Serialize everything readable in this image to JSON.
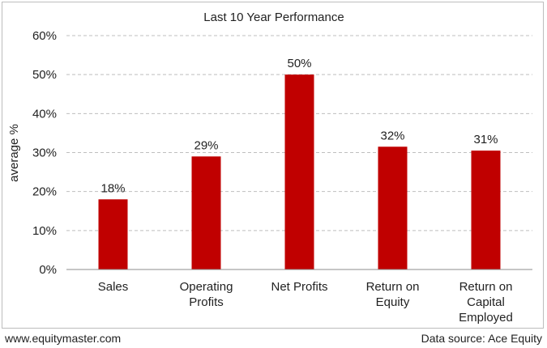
{
  "footer": {
    "website": "www.equitymaster.com",
    "source": "Data source: Ace Equity"
  },
  "chart_data": {
    "type": "bar",
    "title": "Last 10 Year Performance",
    "xlabel": "",
    "ylabel": "average %",
    "categories": [
      [
        "Sales"
      ],
      [
        "Operating",
        "Profits"
      ],
      [
        "Net Profits"
      ],
      [
        "Return on",
        "Equity"
      ],
      [
        "Return on",
        "Capital",
        "Employed"
      ]
    ],
    "values": [
      18,
      29,
      50,
      31.5,
      30.5
    ],
    "value_labels": [
      "18%",
      "29%",
      "50%",
      "32%",
      "31%"
    ],
    "ylim": [
      0,
      60
    ],
    "yticks": [
      0,
      10,
      20,
      30,
      40,
      50,
      60
    ],
    "ytick_labels": [
      "0%",
      "10%",
      "20%",
      "30%",
      "40%",
      "50%",
      "60%"
    ],
    "grid": true,
    "bar_color": "#c00000",
    "grid_color": "#bfbfbf"
  }
}
